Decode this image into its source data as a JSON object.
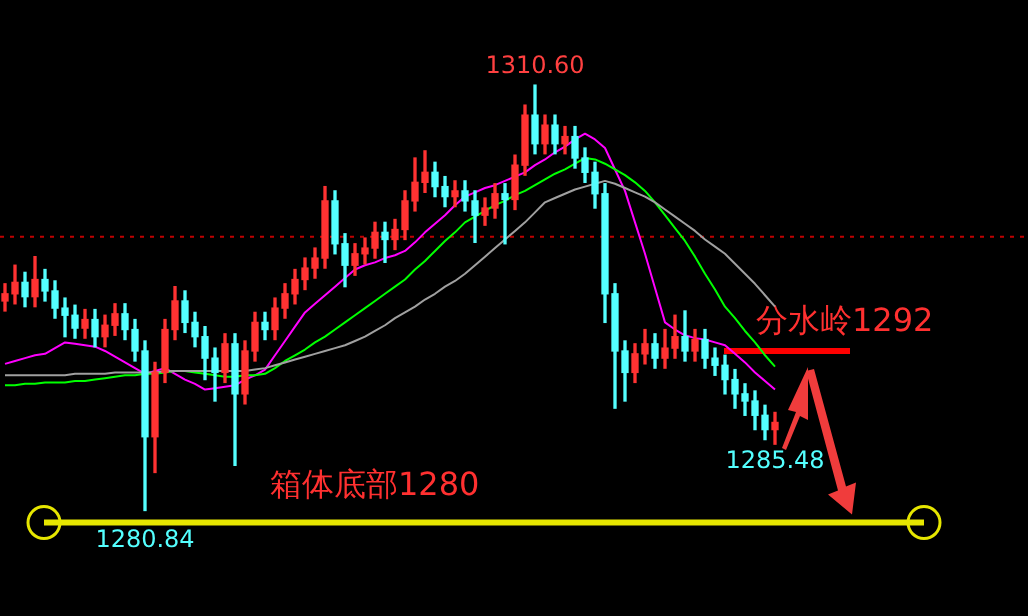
{
  "chart_data": {
    "type": "candlestick",
    "categories": [
      null,
      null,
      null,
      null,
      null,
      null,
      null,
      null,
      null,
      null,
      null,
      null,
      null,
      null,
      null,
      null,
      null,
      null,
      null,
      null,
      null,
      null,
      null,
      null,
      null,
      null,
      null,
      null,
      null,
      null,
      null,
      null,
      null,
      null,
      null,
      null,
      null,
      null,
      null,
      null,
      null,
      null,
      null,
      null,
      null,
      null,
      null,
      null,
      null,
      null,
      null,
      null,
      null,
      null,
      null,
      null,
      null,
      null,
      null,
      null,
      null,
      null,
      null,
      null,
      null,
      null,
      null,
      null,
      null,
      null,
      null,
      null,
      null,
      null,
      null,
      null,
      null,
      null
    ],
    "ohlc": [
      [
        1295.5,
        1296.7,
        1294.8,
        1296.0
      ],
      [
        1296.0,
        1298.0,
        1295.3,
        1296.8
      ],
      [
        1296.8,
        1297.5,
        1295.1,
        1295.8
      ],
      [
        1295.8,
        1298.6,
        1295.1,
        1297.0
      ],
      [
        1297.0,
        1297.7,
        1295.5,
        1296.2
      ],
      [
        1296.2,
        1296.9,
        1294.3,
        1295.0
      ],
      [
        1295.0,
        1295.7,
        1293.0,
        1294.5
      ],
      [
        1294.5,
        1295.2,
        1292.9,
        1293.6
      ],
      [
        1293.6,
        1294.9,
        1292.9,
        1294.2
      ],
      [
        1294.2,
        1294.9,
        1292.3,
        1293.0
      ],
      [
        1293.0,
        1294.5,
        1292.3,
        1293.8
      ],
      [
        1293.8,
        1295.3,
        1293.1,
        1294.6
      ],
      [
        1294.6,
        1295.3,
        1292.8,
        1293.5
      ],
      [
        1293.5,
        1294.2,
        1291.3,
        1292.0
      ],
      [
        1292.0,
        1292.7,
        1280.84,
        1286.0
      ],
      [
        1286.0,
        1291.2,
        1283.5,
        1290.5
      ],
      [
        1290.5,
        1294.2,
        1289.8,
        1293.5
      ],
      [
        1293.5,
        1296.5,
        1292.8,
        1295.5
      ],
      [
        1295.5,
        1296.2,
        1293.3,
        1294.0
      ],
      [
        1294.0,
        1294.7,
        1292.3,
        1293.0
      ],
      [
        1293.0,
        1293.7,
        1290.0,
        1291.5
      ],
      [
        1291.5,
        1292.2,
        1288.5,
        1290.5
      ],
      [
        1290.5,
        1293.2,
        1289.8,
        1292.5
      ],
      [
        1292.5,
        1293.2,
        1284.0,
        1289.0
      ],
      [
        1289.0,
        1292.7,
        1288.3,
        1292.0
      ],
      [
        1292.0,
        1294.7,
        1291.3,
        1294.0
      ],
      [
        1294.0,
        1294.7,
        1292.8,
        1293.5
      ],
      [
        1293.5,
        1295.7,
        1292.8,
        1295.0
      ],
      [
        1295.0,
        1296.7,
        1294.3,
        1296.0
      ],
      [
        1296.0,
        1297.7,
        1295.3,
        1297.0
      ],
      [
        1297.0,
        1298.5,
        1296.3,
        1297.8
      ],
      [
        1297.8,
        1299.2,
        1297.1,
        1298.5
      ],
      [
        1298.5,
        1303.5,
        1297.8,
        1302.5
      ],
      [
        1302.5,
        1303.2,
        1298.8,
        1299.5
      ],
      [
        1299.5,
        1300.2,
        1296.5,
        1298.0
      ],
      [
        1298.0,
        1299.5,
        1297.3,
        1298.8
      ],
      [
        1298.8,
        1299.9,
        1298.1,
        1299.2
      ],
      [
        1299.2,
        1301.0,
        1298.5,
        1300.3
      ],
      [
        1300.3,
        1301.0,
        1298.2,
        1299.8
      ],
      [
        1299.8,
        1301.2,
        1299.1,
        1300.5
      ],
      [
        1300.5,
        1303.2,
        1299.8,
        1302.5
      ],
      [
        1302.5,
        1305.5,
        1301.8,
        1303.8
      ],
      [
        1303.8,
        1306.0,
        1303.1,
        1304.5
      ],
      [
        1304.5,
        1305.2,
        1302.8,
        1303.5
      ],
      [
        1303.5,
        1304.2,
        1302.1,
        1302.8
      ],
      [
        1302.8,
        1303.9,
        1302.1,
        1303.2
      ],
      [
        1303.2,
        1303.9,
        1301.8,
        1302.5
      ],
      [
        1302.5,
        1303.2,
        1299.6,
        1301.5
      ],
      [
        1301.5,
        1302.7,
        1300.8,
        1302.0
      ],
      [
        1302.0,
        1303.7,
        1301.3,
        1303.0
      ],
      [
        1303.0,
        1303.7,
        1299.5,
        1302.6
      ],
      [
        1302.6,
        1305.7,
        1301.9,
        1305.0
      ],
      [
        1305.0,
        1309.2,
        1304.3,
        1308.5
      ],
      [
        1308.5,
        1310.6,
        1305.8,
        1306.5
      ],
      [
        1306.5,
        1308.5,
        1305.8,
        1307.8
      ],
      [
        1307.8,
        1308.5,
        1305.8,
        1306.5
      ],
      [
        1306.5,
        1307.7,
        1305.8,
        1307.0
      ],
      [
        1307.0,
        1307.7,
        1304.8,
        1305.5
      ],
      [
        1305.5,
        1306.2,
        1303.8,
        1304.5
      ],
      [
        1304.5,
        1305.2,
        1302.0,
        1303.0
      ],
      [
        1303.0,
        1303.7,
        1294.0,
        1296.0
      ],
      [
        1296.0,
        1296.7,
        1288.0,
        1292.0
      ],
      [
        1292.0,
        1292.7,
        1288.5,
        1290.5
      ],
      [
        1290.5,
        1292.5,
        1289.8,
        1291.8
      ],
      [
        1291.8,
        1293.5,
        1291.1,
        1292.5
      ],
      [
        1292.5,
        1293.2,
        1290.8,
        1291.5
      ],
      [
        1291.5,
        1293.5,
        1290.8,
        1292.2
      ],
      [
        1292.2,
        1294.5,
        1291.5,
        1293.0
      ],
      [
        1293.0,
        1294.8,
        1291.3,
        1292.0
      ],
      [
        1292.0,
        1293.5,
        1291.3,
        1292.8
      ],
      [
        1292.8,
        1293.5,
        1290.8,
        1291.5
      ],
      [
        1291.5,
        1292.2,
        1290.3,
        1291.0
      ],
      [
        1291.0,
        1291.7,
        1289.0,
        1290.0
      ],
      [
        1290.0,
        1290.7,
        1288.0,
        1289.0
      ],
      [
        1289.0,
        1289.7,
        1287.5,
        1288.5
      ],
      [
        1288.5,
        1289.2,
        1286.5,
        1287.5
      ],
      [
        1287.5,
        1288.2,
        1285.8,
        1286.5
      ],
      [
        1286.5,
        1287.7,
        1285.48,
        1287.0
      ]
    ],
    "colors": [
      "#ff3232",
      "#ff3232",
      "#54ffff",
      "#ff3232",
      "#54ffff",
      "#54ffff",
      "#54ffff",
      "#54ffff",
      "#ff3232",
      "#54ffff",
      "#ff3232",
      "#ff3232",
      "#54ffff",
      "#54ffff",
      "#54ffff",
      "#ff3232",
      "#ff3232",
      "#ff3232",
      "#54ffff",
      "#54ffff",
      "#54ffff",
      "#54ffff",
      "#ff3232",
      "#54ffff",
      "#ff3232",
      "#ff3232",
      "#54ffff",
      "#ff3232",
      "#ff3232",
      "#ff3232",
      "#ff3232",
      "#ff3232",
      "#ff3232",
      "#54ffff",
      "#54ffff",
      "#ff3232",
      "#ff3232",
      "#ff3232",
      "#54ffff",
      "#ff3232",
      "#ff3232",
      "#ff3232",
      "#ff3232",
      "#54ffff",
      "#54ffff",
      "#ff3232",
      "#54ffff",
      "#54ffff",
      "#ff3232",
      "#ff3232",
      "#54ffff",
      "#ff3232",
      "#ff3232",
      "#54ffff",
      "#ff3232",
      "#54ffff",
      "#ff3232",
      "#54ffff",
      "#54ffff",
      "#54ffff",
      "#54ffff",
      "#54ffff",
      "#54ffff",
      "#ff3232",
      "#ff3232",
      "#54ffff",
      "#ff3232",
      "#ff3232",
      "#54ffff",
      "#ff3232",
      "#54ffff",
      "#54ffff",
      "#54ffff",
      "#54ffff",
      "#54ffff",
      "#54ffff",
      "#54ffff",
      "#ff3232"
    ],
    "series": [
      {
        "type": "line",
        "color": "#a0a0a0",
        "values": [
          1290.3,
          1290.3,
          1290.3,
          1290.3,
          1290.3,
          1290.3,
          1290.3,
          1290.4,
          1290.4,
          1290.4,
          1290.4,
          1290.5,
          1290.5,
          1290.5,
          1290.5,
          1290.5,
          1290.6,
          1290.6,
          1290.6,
          1290.6,
          1290.6,
          1290.6,
          1290.6,
          1290.6,
          1290.6,
          1290.7,
          1290.8,
          1291.0,
          1291.2,
          1291.4,
          1291.6,
          1291.8,
          1292.0,
          1292.2,
          1292.4,
          1292.7,
          1293.0,
          1293.4,
          1293.8,
          1294.3,
          1294.7,
          1295.1,
          1295.6,
          1296.0,
          1296.5,
          1296.9,
          1297.4,
          1298.0,
          1298.6,
          1299.2,
          1299.8,
          1300.4,
          1301.0,
          1301.7,
          1302.4,
          1302.7,
          1303.0,
          1303.3,
          1303.5,
          1303.7,
          1303.9,
          1303.7,
          1303.4,
          1303.1,
          1302.8,
          1302.4,
          1301.9,
          1301.4,
          1300.9,
          1300.4,
          1299.8,
          1299.3,
          1298.8,
          1298.1,
          1297.4,
          1296.7,
          1295.9,
          1295.1
        ]
      },
      {
        "type": "line",
        "color": "#00ff00",
        "values": [
          1289.6,
          1289.6,
          1289.7,
          1289.7,
          1289.8,
          1289.8,
          1289.8,
          1289.9,
          1289.9,
          1290.0,
          1290.1,
          1290.2,
          1290.3,
          1290.3,
          1290.4,
          1290.4,
          1290.5,
          1290.6,
          1290.6,
          1290.5,
          1290.4,
          1290.3,
          1290.2,
          1290.2,
          1290.3,
          1290.3,
          1290.4,
          1290.8,
          1291.3,
          1291.7,
          1292.1,
          1292.6,
          1293.0,
          1293.5,
          1294.0,
          1294.5,
          1295.0,
          1295.5,
          1296.0,
          1296.5,
          1297.0,
          1297.7,
          1298.3,
          1299.0,
          1299.7,
          1300.3,
          1301.0,
          1301.4,
          1301.8,
          1302.2,
          1302.5,
          1302.9,
          1303.2,
          1303.6,
          1304.0,
          1304.4,
          1304.7,
          1305.1,
          1305.5,
          1305.4,
          1305.1,
          1304.7,
          1304.3,
          1303.8,
          1303.2,
          1302.4,
          1301.5,
          1300.6,
          1299.7,
          1298.6,
          1297.4,
          1296.3,
          1295.1,
          1294.3,
          1293.4,
          1292.6,
          1291.7,
          1290.9
        ]
      },
      {
        "type": "line",
        "color": "#ff00ff",
        "values": [
          1291.1,
          1291.3,
          1291.5,
          1291.7,
          1291.8,
          1292.2,
          1292.6,
          1292.5,
          1292.4,
          1292.3,
          1292.0,
          1291.6,
          1291.2,
          1290.8,
          1290.4,
          1290.6,
          1290.8,
          1290.4,
          1290.0,
          1289.7,
          1289.3,
          1289.4,
          1289.5,
          1289.6,
          1290.0,
          1290.3,
          1290.7,
          1291.7,
          1292.7,
          1293.7,
          1294.7,
          1295.3,
          1295.9,
          1296.5,
          1297.1,
          1297.7,
          1298.0,
          1298.2,
          1298.5,
          1298.7,
          1299.0,
          1299.6,
          1300.3,
          1300.9,
          1301.5,
          1302.2,
          1302.8,
          1303.1,
          1303.4,
          1303.6,
          1303.9,
          1304.2,
          1304.5,
          1305.0,
          1305.4,
          1305.9,
          1306.3,
          1306.8,
          1307.2,
          1306.8,
          1306.2,
          1304.7,
          1303.2,
          1301.0,
          1298.8,
          1296.4,
          1294.0,
          1293.5,
          1293.1,
          1292.9,
          1292.8,
          1292.6,
          1292.4,
          1291.8,
          1291.2,
          1290.5,
          1289.9,
          1289.3
        ]
      }
    ],
    "tick_labels": false,
    "ref_lines": [
      {
        "axis": "y",
        "value": 1300,
        "color": "#c00000",
        "line_style": "dotted"
      },
      {
        "axis": "y",
        "value": 1292,
        "label": "分水岭1292",
        "color": "#ff0000",
        "line_style": "solid"
      },
      {
        "axis": "y",
        "value": 1280,
        "label": "箱体底部1280",
        "color": "#e6e600",
        "line_style": "solid"
      }
    ],
    "annotations": [
      {
        "text": "1310.60",
        "y": 1310.6
      },
      {
        "text": "1280.84",
        "y": 1280.84
      },
      {
        "text": "1285.48",
        "y": 1285.48
      }
    ],
    "legend": false
  }
}
